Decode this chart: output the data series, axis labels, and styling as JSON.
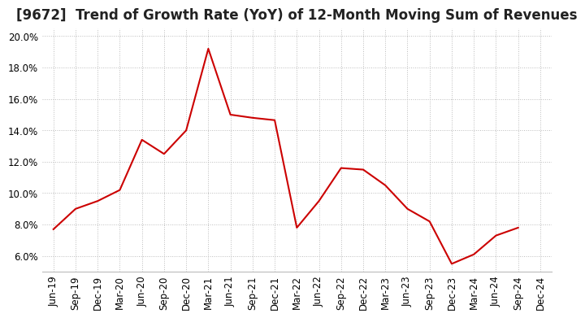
{
  "title": "[9672]  Trend of Growth Rate (YoY) of 12-Month Moving Sum of Revenues",
  "x_labels": [
    "Jun-19",
    "Sep-19",
    "Dec-19",
    "Mar-20",
    "Jun-20",
    "Sep-20",
    "Dec-20",
    "Mar-21",
    "Jun-21",
    "Sep-21",
    "Dec-21",
    "Mar-22",
    "Jun-22",
    "Sep-22",
    "Dec-22",
    "Mar-23",
    "Jun-23",
    "Sep-23",
    "Dec-23",
    "Mar-24",
    "Jun-24",
    "Sep-24",
    "Dec-24"
  ],
  "y_values": [
    7.7,
    9.0,
    9.5,
    10.2,
    13.4,
    12.5,
    14.0,
    19.2,
    null,
    14.8,
    14.65,
    7.8,
    null,
    11.6,
    11.5,
    null,
    null,
    null,
    5.5,
    6.1,
    7.3,
    null,
    null
  ],
  "y_values_clean": [
    7.7,
    9.0,
    9.5,
    10.2,
    13.4,
    12.5,
    14.0,
    19.2,
    15.0,
    14.8,
    14.65,
    7.8,
    9.5,
    11.6,
    11.5,
    10.5,
    9.0,
    8.2,
    5.5,
    6.1,
    7.3,
    7.8,
    null
  ],
  "ylim": [
    5.0,
    20.5
  ],
  "ytick_values": [
    6.0,
    8.0,
    10.0,
    12.0,
    14.0,
    16.0,
    18.0,
    20.0
  ],
  "line_color": "#cc0000",
  "background_color": "#ffffff",
  "grid_color": "#bbbbbb",
  "title_fontsize": 12,
  "tick_fontsize": 8.5
}
